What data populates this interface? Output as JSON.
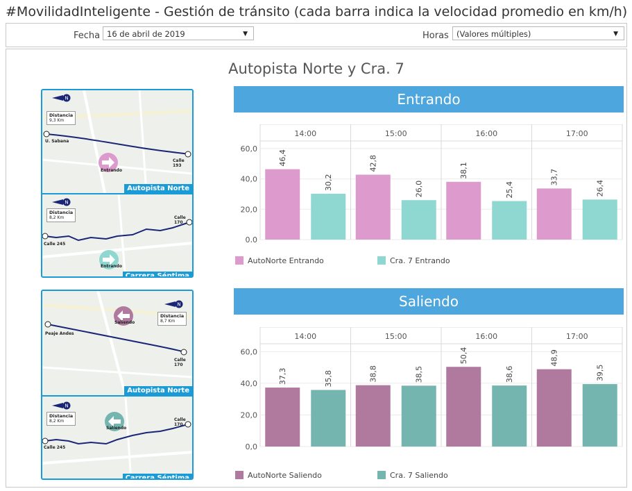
{
  "title": "#MovilidadInteligente - Gestión de tránsito (cada barra indica la velocidad promedio en km/h)",
  "filters": {
    "fecha_label": "Fecha",
    "fecha_value": "16 de abril de 2019",
    "horas_label": "Horas",
    "horas_value": "(Valores múltiples)"
  },
  "panel_title": "Autopista Norte y Cra. 7",
  "maps": {
    "entrando": {
      "top": {
        "distance_label": "Distancia",
        "distance_value": "9,3 Km",
        "start": "U. Sabana",
        "end": "Calle 193",
        "direction": "Entrando",
        "name": "Autopista Norte"
      },
      "bottom": {
        "distance_label": "Distancia",
        "distance_value": "8,2 Km",
        "start": "Calle 245",
        "end": "Calle 170",
        "direction": "Entrando",
        "name": "Carrera Séptima"
      }
    },
    "saliendo": {
      "top": {
        "distance_label": "Distancia",
        "distance_value": "8,7 Km",
        "start": "Peaje Andes",
        "end": "Calle 170",
        "direction": "Saliendo",
        "name": "Autopista Norte"
      },
      "bottom": {
        "distance_label": "Distancia",
        "distance_value": "8,2 Km",
        "start": "Calle 245",
        "end": "Calle 170",
        "direction": "Saliendo",
        "name": "Carrera Séptima"
      }
    }
  },
  "chart_data": [
    {
      "type": "bar",
      "title": "Entrando",
      "categories": [
        "14:00",
        "15:00",
        "16:00",
        "17:00"
      ],
      "series": [
        {
          "name": "AutoNorte Entrando",
          "values": [
            46.4,
            42.8,
            38.1,
            33.7
          ],
          "labels": [
            "46,4",
            "42,8",
            "38,1",
            "33,7"
          ],
          "color": "#dc9bcc"
        },
        {
          "name": "Cra. 7 Entrando",
          "values": [
            30.2,
            26.0,
            25.4,
            26.4
          ],
          "labels": [
            "30,2",
            "26,0",
            "25,4",
            "26,4"
          ],
          "color": "#8ed8d1"
        }
      ],
      "yticks": [
        "0,0",
        "20,0",
        "40,0",
        "60,0"
      ],
      "ylim": [
        0,
        65
      ],
      "grid": true,
      "legend": "bottom"
    },
    {
      "type": "bar",
      "title": "Saliendo",
      "categories": [
        "14:00",
        "15:00",
        "16:00",
        "17:00"
      ],
      "series": [
        {
          "name": "AutoNorte Saliendo",
          "values": [
            37.3,
            38.8,
            50.4,
            48.9
          ],
          "labels": [
            "37,3",
            "38,8",
            "50,4",
            "48,9"
          ],
          "color": "#b07a9f"
        },
        {
          "name": "Cra. 7 Saliendo",
          "values": [
            35.8,
            38.5,
            38.6,
            39.5
          ],
          "labels": [
            "35,8",
            "38,5",
            "38,6",
            "39,5"
          ],
          "color": "#74b5b0"
        }
      ],
      "yticks": [
        "0,0",
        "20,0",
        "40,0",
        "60,0"
      ],
      "ylim": [
        0,
        65
      ],
      "grid": true,
      "legend": "bottom"
    }
  ]
}
